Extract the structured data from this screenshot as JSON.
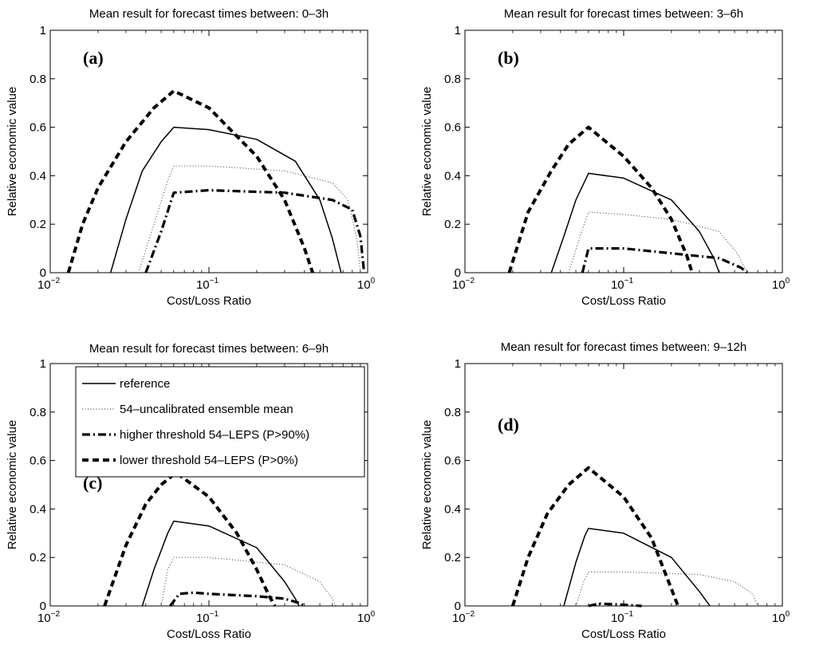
{
  "chart_data": [
    {
      "type": "line",
      "title": "Mean result for forecast times between: 0–3h",
      "panel_label": "(a)",
      "xlabel": "Cost/Loss Ratio",
      "ylabel": "Relative economic value",
      "xscale": "log",
      "xlim": [
        0.01,
        1
      ],
      "ylim": [
        0,
        1
      ],
      "xtick_base": "10",
      "xtick_exponents": [
        "−2",
        "−1",
        "0"
      ],
      "yticks": [
        "0",
        "0.2",
        "0.4",
        "0.6",
        "0.8",
        "1"
      ],
      "series": [
        {
          "key": "reference",
          "x": [
            0.024,
            0.03,
            0.038,
            0.05,
            0.06,
            0.1,
            0.2,
            0.35,
            0.5,
            0.6,
            0.68
          ],
          "y": [
            0,
            0.22,
            0.42,
            0.54,
            0.6,
            0.59,
            0.55,
            0.46,
            0.3,
            0.14,
            0
          ]
        },
        {
          "key": "uncalibrated",
          "x": [
            0.036,
            0.045,
            0.055,
            0.06,
            0.1,
            0.3,
            0.6,
            0.75,
            0.85,
            0.9
          ],
          "y": [
            0,
            0.2,
            0.38,
            0.44,
            0.44,
            0.42,
            0.37,
            0.3,
            0.15,
            0
          ]
        },
        {
          "key": "higher",
          "x": [
            0.04,
            0.05,
            0.06,
            0.1,
            0.3,
            0.6,
            0.8,
            0.9,
            0.95
          ],
          "y": [
            0,
            0.17,
            0.33,
            0.34,
            0.33,
            0.3,
            0.26,
            0.15,
            0
          ]
        },
        {
          "key": "lower",
          "x": [
            0.013,
            0.016,
            0.02,
            0.03,
            0.045,
            0.06,
            0.1,
            0.2,
            0.3,
            0.4,
            0.45
          ],
          "y": [
            0,
            0.2,
            0.35,
            0.54,
            0.68,
            0.75,
            0.68,
            0.48,
            0.3,
            0.1,
            0
          ]
        }
      ]
    },
    {
      "type": "line",
      "title": "Mean result for forecast times between: 3–6h",
      "panel_label": "(b)",
      "xlabel": "Cost/Loss Ratio",
      "ylabel": "Relative economic value",
      "xscale": "log",
      "xlim": [
        0.01,
        1
      ],
      "ylim": [
        0,
        1
      ],
      "xtick_base": "10",
      "xtick_exponents": [
        "−2",
        "−1",
        "0"
      ],
      "yticks": [
        "0",
        "0.2",
        "0.4",
        "0.6",
        "0.8",
        "1"
      ],
      "series": [
        {
          "key": "reference",
          "x": [
            0.035,
            0.042,
            0.05,
            0.06,
            0.1,
            0.2,
            0.3,
            0.37,
            0.4
          ],
          "y": [
            0,
            0.15,
            0.3,
            0.41,
            0.39,
            0.3,
            0.17,
            0.06,
            0
          ]
        },
        {
          "key": "uncalibrated",
          "x": [
            0.045,
            0.055,
            0.06,
            0.1,
            0.2,
            0.4,
            0.52,
            0.6
          ],
          "y": [
            0,
            0.18,
            0.25,
            0.24,
            0.22,
            0.17,
            0.08,
            0
          ]
        },
        {
          "key": "higher",
          "x": [
            0.055,
            0.06,
            0.1,
            0.2,
            0.4,
            0.55,
            0.6
          ],
          "y": [
            0,
            0.1,
            0.1,
            0.08,
            0.06,
            0.02,
            0
          ]
        },
        {
          "key": "lower",
          "x": [
            0.019,
            0.025,
            0.035,
            0.045,
            0.06,
            0.1,
            0.15,
            0.2,
            0.25,
            0.27
          ],
          "y": [
            0,
            0.25,
            0.42,
            0.53,
            0.6,
            0.48,
            0.35,
            0.22,
            0.07,
            0
          ]
        }
      ]
    },
    {
      "type": "line",
      "title": "Mean result for forecast times between: 6–9h",
      "panel_label": "(c)",
      "xlabel": "Cost/Loss Ratio",
      "ylabel": "Relative economic value",
      "xscale": "log",
      "xlim": [
        0.01,
        1
      ],
      "ylim": [
        0,
        1
      ],
      "xtick_base": "10",
      "xtick_exponents": [
        "−2",
        "−1",
        "0"
      ],
      "yticks": [
        "0",
        "0.2",
        "0.4",
        "0.6",
        "0.8",
        "1"
      ],
      "legend": {
        "placement": "top-left",
        "entries": [
          {
            "key": "reference",
            "label": "reference"
          },
          {
            "key": "uncalibrated",
            "label": "54–uncalibrated ensemble mean"
          },
          {
            "key": "higher",
            "label": "higher threshold 54–LEPS (P>90%)"
          },
          {
            "key": "lower",
            "label": "lower threshold 54–LEPS (P>0%)"
          }
        ]
      },
      "series": [
        {
          "key": "reference",
          "x": [
            0.038,
            0.045,
            0.055,
            0.06,
            0.1,
            0.2,
            0.3,
            0.35,
            0.37
          ],
          "y": [
            0,
            0.15,
            0.3,
            0.35,
            0.33,
            0.24,
            0.1,
            0.03,
            0
          ]
        },
        {
          "key": "uncalibrated",
          "x": [
            0.05,
            0.055,
            0.06,
            0.1,
            0.3,
            0.5,
            0.6,
            0.63
          ],
          "y": [
            0,
            0.15,
            0.2,
            0.2,
            0.17,
            0.1,
            0.03,
            0
          ]
        },
        {
          "key": "higher",
          "x": [
            0.057,
            0.065,
            0.08,
            0.1,
            0.2,
            0.3,
            0.38,
            0.4
          ],
          "y": [
            0,
            0.05,
            0.055,
            0.05,
            0.04,
            0.03,
            0.01,
            0
          ]
        },
        {
          "key": "lower",
          "x": [
            0.022,
            0.03,
            0.04,
            0.05,
            0.062,
            0.1,
            0.15,
            0.2,
            0.24,
            0.26
          ],
          "y": [
            0,
            0.25,
            0.42,
            0.5,
            0.55,
            0.45,
            0.3,
            0.15,
            0.04,
            0
          ]
        }
      ]
    },
    {
      "type": "line",
      "title": "Mean result for forecast times between: 9–12h",
      "panel_label": "(d)",
      "xlabel": "Cost/Loss Ratio",
      "ylabel": "Relative economic value",
      "xscale": "log",
      "xlim": [
        0.01,
        1
      ],
      "ylim": [
        0,
        1
      ],
      "xtick_base": "10",
      "xtick_exponents": [
        "−2",
        "−1",
        "0"
      ],
      "yticks": [
        "0",
        "0.2",
        "0.4",
        "0.6",
        "0.8",
        "1"
      ],
      "series": [
        {
          "key": "reference",
          "x": [
            0.042,
            0.05,
            0.057,
            0.06,
            0.1,
            0.2,
            0.3,
            0.35
          ],
          "y": [
            0,
            0.18,
            0.29,
            0.32,
            0.3,
            0.2,
            0.06,
            0
          ]
        },
        {
          "key": "uncalibrated",
          "x": [
            0.05,
            0.056,
            0.06,
            0.1,
            0.3,
            0.5,
            0.65,
            0.7
          ],
          "y": [
            0,
            0.1,
            0.14,
            0.14,
            0.13,
            0.1,
            0.05,
            0
          ]
        },
        {
          "key": "higher",
          "x": [
            0.06,
            0.07,
            0.1,
            0.13
          ],
          "y": [
            0,
            0.01,
            0.005,
            0
          ]
        },
        {
          "key": "lower",
          "x": [
            0.02,
            0.025,
            0.033,
            0.045,
            0.06,
            0.1,
            0.15,
            0.2,
            0.22
          ],
          "y": [
            0,
            0.2,
            0.38,
            0.5,
            0.57,
            0.45,
            0.28,
            0.07,
            0
          ]
        }
      ]
    }
  ]
}
